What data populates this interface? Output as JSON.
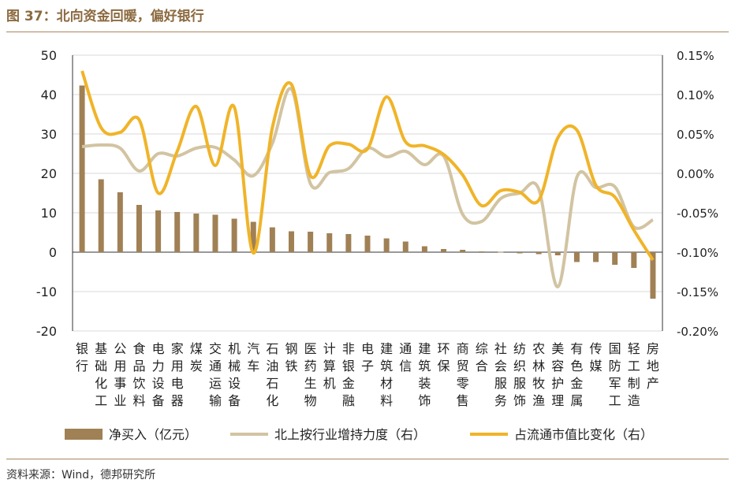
{
  "figure": {
    "title": "图 37：北向资金回暖，偏好银行",
    "source": "资料来源：Wind，德邦研究所"
  },
  "colors": {
    "bar": "#a08055",
    "line_light": "#d2c4a2",
    "line_gold": "#f0b429",
    "accent": "#8c6a40"
  },
  "chart_data": {
    "type": "bar",
    "categories": [
      "银行",
      "基础化工",
      "公用事业",
      "食品饮料",
      "电力设备",
      "家用电器",
      "煤炭",
      "交通运输",
      "机械设备",
      "汽车",
      "石油石化",
      "钢铁",
      "医药生物",
      "计算机",
      "非银金融",
      "电子",
      "建筑材料",
      "通信",
      "建筑装饰",
      "环保",
      "商贸零售",
      "综合",
      "社会服务",
      "纺织服饰",
      "农林牧渔",
      "美容护理",
      "有色金属",
      "传媒",
      "国防军工",
      "轻工制造",
      "房地产"
    ],
    "left_axis": {
      "ylim": [
        -20,
        50
      ],
      "ticks": [
        "50",
        "40",
        "30",
        "20",
        "10",
        "0",
        "-10",
        "-20"
      ]
    },
    "right_axis": {
      "ylim": [
        -0.2,
        0.15
      ],
      "ticks": [
        "0.15%",
        "0.10%",
        "0.05%",
        "0.00%",
        "-0.05%",
        "-0.10%",
        "-0.15%",
        "-0.20%"
      ]
    },
    "series": [
      {
        "name": "净买入（亿元）",
        "type": "bar",
        "axis": "left",
        "values": [
          42.3,
          18.5,
          15.2,
          12.0,
          10.6,
          10.2,
          9.8,
          9.5,
          8.5,
          7.7,
          6.3,
          5.3,
          5.2,
          4.8,
          4.6,
          4.2,
          3.5,
          2.7,
          1.5,
          0.8,
          0.6,
          0.2,
          0.1,
          -0.3,
          -0.5,
          -0.8,
          -2.5,
          -2.5,
          -3.2,
          -4.0,
          -11.8
        ]
      },
      {
        "name": "北上按行业增持力度（右）",
        "type": "line",
        "axis": "right",
        "values": [
          0.034,
          0.036,
          0.032,
          0.003,
          0.025,
          0.022,
          0.032,
          0.033,
          0.017,
          -0.003,
          0.038,
          0.107,
          -0.013,
          0.001,
          0.006,
          0.032,
          0.021,
          0.028,
          0.011,
          0.022,
          -0.052,
          -0.061,
          -0.032,
          -0.025,
          -0.02,
          -0.144,
          -0.005,
          -0.018,
          -0.017,
          -0.068,
          -0.059
        ]
      },
      {
        "name": "占流通市值比变化（右）",
        "type": "line",
        "axis": "right",
        "values": [
          0.13,
          0.058,
          0.052,
          0.068,
          -0.025,
          0.028,
          0.085,
          0.01,
          0.084,
          -0.101,
          0.058,
          0.113,
          -0.003,
          0.035,
          0.037,
          0.031,
          0.097,
          0.04,
          0.035,
          0.024,
          -0.002,
          -0.041,
          -0.022,
          -0.024,
          -0.034,
          0.045,
          0.055,
          -0.015,
          -0.03,
          -0.072,
          -0.11
        ]
      }
    ],
    "legend": {
      "position": "bottom"
    },
    "grid": "horizontal"
  }
}
